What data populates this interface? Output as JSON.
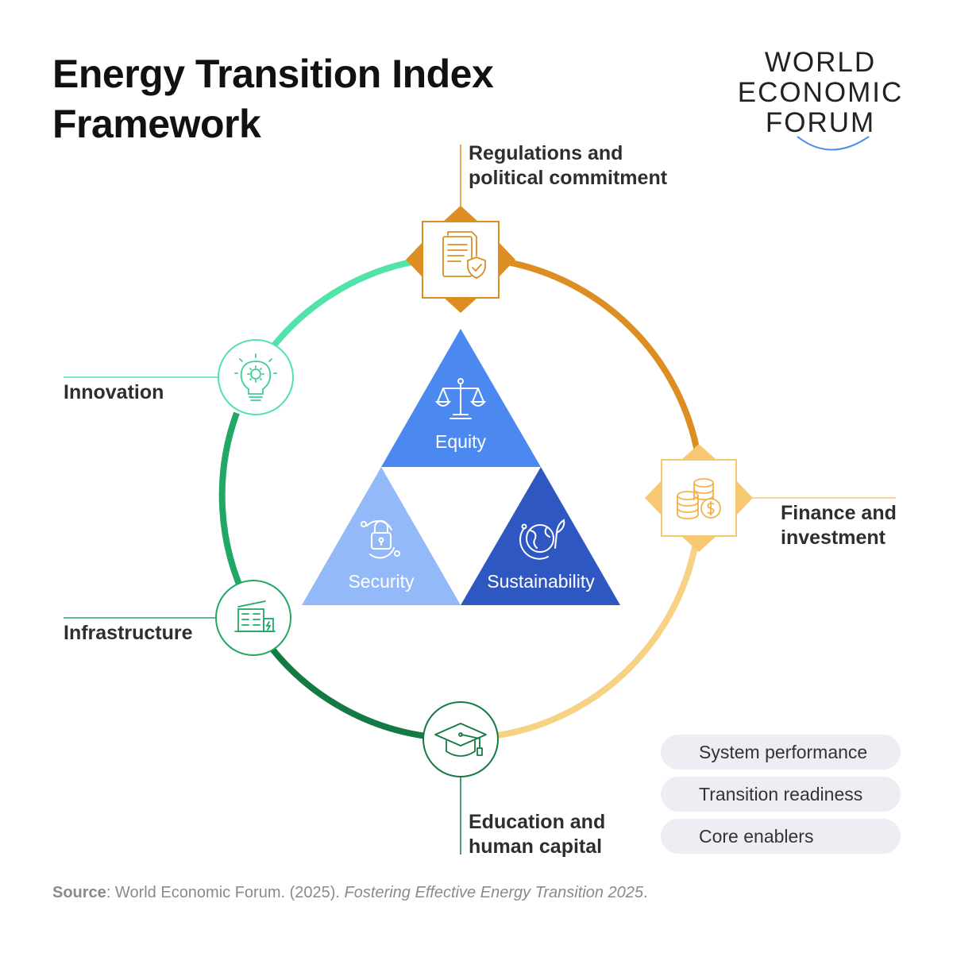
{
  "title": {
    "line1": "Energy Transition Index",
    "line2": "Framework"
  },
  "logo": {
    "line1": "WORLD",
    "line2": "ECONOMIC",
    "line3": "FORUM"
  },
  "triangles": {
    "top": {
      "label": "Equity",
      "icon": "scales-icon",
      "color": "#4b88f0"
    },
    "left": {
      "label": "Security",
      "icon": "padlock-icon",
      "color": "#93b9f8"
    },
    "right": {
      "label": "Sustainability",
      "icon": "globe-leaf-icon",
      "color": "#2f57c2"
    }
  },
  "enablers": {
    "regulations": {
      "line1": "Regulations and",
      "line2": "political commitment",
      "icon": "document-shield-icon",
      "color": "#dd8e22"
    },
    "finance": {
      "line1": "Finance and",
      "line2": "investment",
      "icon": "coins-icon",
      "color": "#f7c872"
    },
    "innovation": {
      "label": "Innovation",
      "icon": "lightbulb-gear-icon",
      "color": "#52e3a8"
    },
    "infrastructure": {
      "label": "Infrastructure",
      "icon": "building-icon",
      "color": "#21a865"
    },
    "education": {
      "line1": "Education and",
      "line2": "human capital",
      "icon": "graduation-cap-icon",
      "color": "#147a43"
    }
  },
  "legend": {
    "system": "System performance",
    "readiness": "Transition readiness",
    "core": "Core enablers"
  },
  "source": {
    "label": "Source",
    "text": ": World Economic Forum. (2025). ",
    "title": "Fostering Effective Energy Transition 2025",
    "end": "."
  }
}
